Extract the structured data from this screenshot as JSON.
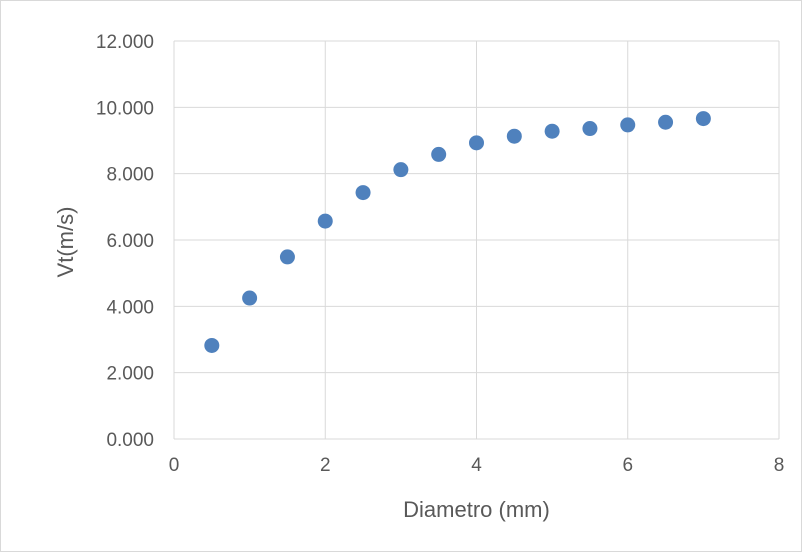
{
  "chart_data": {
    "type": "scatter",
    "title": "",
    "xlabel": "Diametro (mm)",
    "ylabel": "Vt(m/s)",
    "xlim": [
      0,
      8
    ],
    "ylim": [
      0,
      12
    ],
    "x_ticks": [
      0,
      2,
      4,
      6,
      8
    ],
    "x_tick_labels": [
      "0",
      "2",
      "4",
      "6",
      "8"
    ],
    "y_ticks": [
      0,
      2,
      4,
      6,
      8,
      10,
      12
    ],
    "y_tick_labels": [
      "0.000",
      "2.000",
      "4.000",
      "6.000",
      "8.000",
      "10.000",
      "12.000"
    ],
    "grid": true,
    "legend": "none",
    "series": [
      {
        "color": "#4f81bd",
        "x": [
          0.5,
          1.0,
          1.5,
          2.0,
          2.5,
          3.0,
          3.5,
          4.0,
          4.5,
          5.0,
          5.5,
          6.0,
          6.5,
          7.0
        ],
        "y": [
          2.82,
          4.25,
          5.49,
          6.57,
          7.43,
          8.12,
          8.58,
          8.93,
          9.13,
          9.28,
          9.36,
          9.47,
          9.55,
          9.66
        ]
      }
    ],
    "colors": {
      "grid": "#d9d9d9",
      "text": "#595959",
      "marker": "#4f81bd"
    }
  }
}
